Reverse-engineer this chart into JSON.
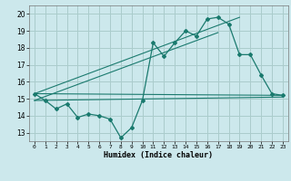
{
  "xlabel": "Humidex (Indice chaleur)",
  "bg_color": "#cce8ec",
  "grid_color": "#aacccc",
  "line_color": "#1a7a6e",
  "xlim": [
    -0.5,
    23.5
  ],
  "ylim": [
    12.5,
    20.5
  ],
  "xticks": [
    0,
    1,
    2,
    3,
    4,
    5,
    6,
    7,
    8,
    9,
    10,
    11,
    12,
    13,
    14,
    15,
    16,
    17,
    18,
    19,
    20,
    21,
    22,
    23
  ],
  "yticks": [
    13,
    14,
    15,
    16,
    17,
    18,
    19,
    20
  ],
  "series1_x": [
    0,
    1,
    2,
    3,
    4,
    5,
    6,
    7,
    8,
    9,
    10,
    11,
    12,
    13,
    14,
    15,
    16,
    17,
    18,
    19,
    20,
    21,
    22,
    23
  ],
  "series1_y": [
    15.3,
    14.9,
    14.4,
    14.7,
    13.9,
    14.1,
    14.0,
    13.8,
    12.7,
    13.3,
    14.9,
    18.3,
    17.5,
    18.3,
    19.0,
    18.7,
    19.7,
    19.8,
    19.4,
    17.6,
    17.6,
    16.4,
    15.3,
    15.2
  ],
  "line2_x": [
    0,
    23
  ],
  "line2_y": [
    15.3,
    15.2
  ],
  "line3_x": [
    0,
    23
  ],
  "line3_y": [
    14.9,
    15.1
  ],
  "line4_x": [
    0,
    19
  ],
  "line4_y": [
    15.3,
    19.8
  ],
  "line5_x": [
    0,
    17
  ],
  "line5_y": [
    14.9,
    18.9
  ]
}
